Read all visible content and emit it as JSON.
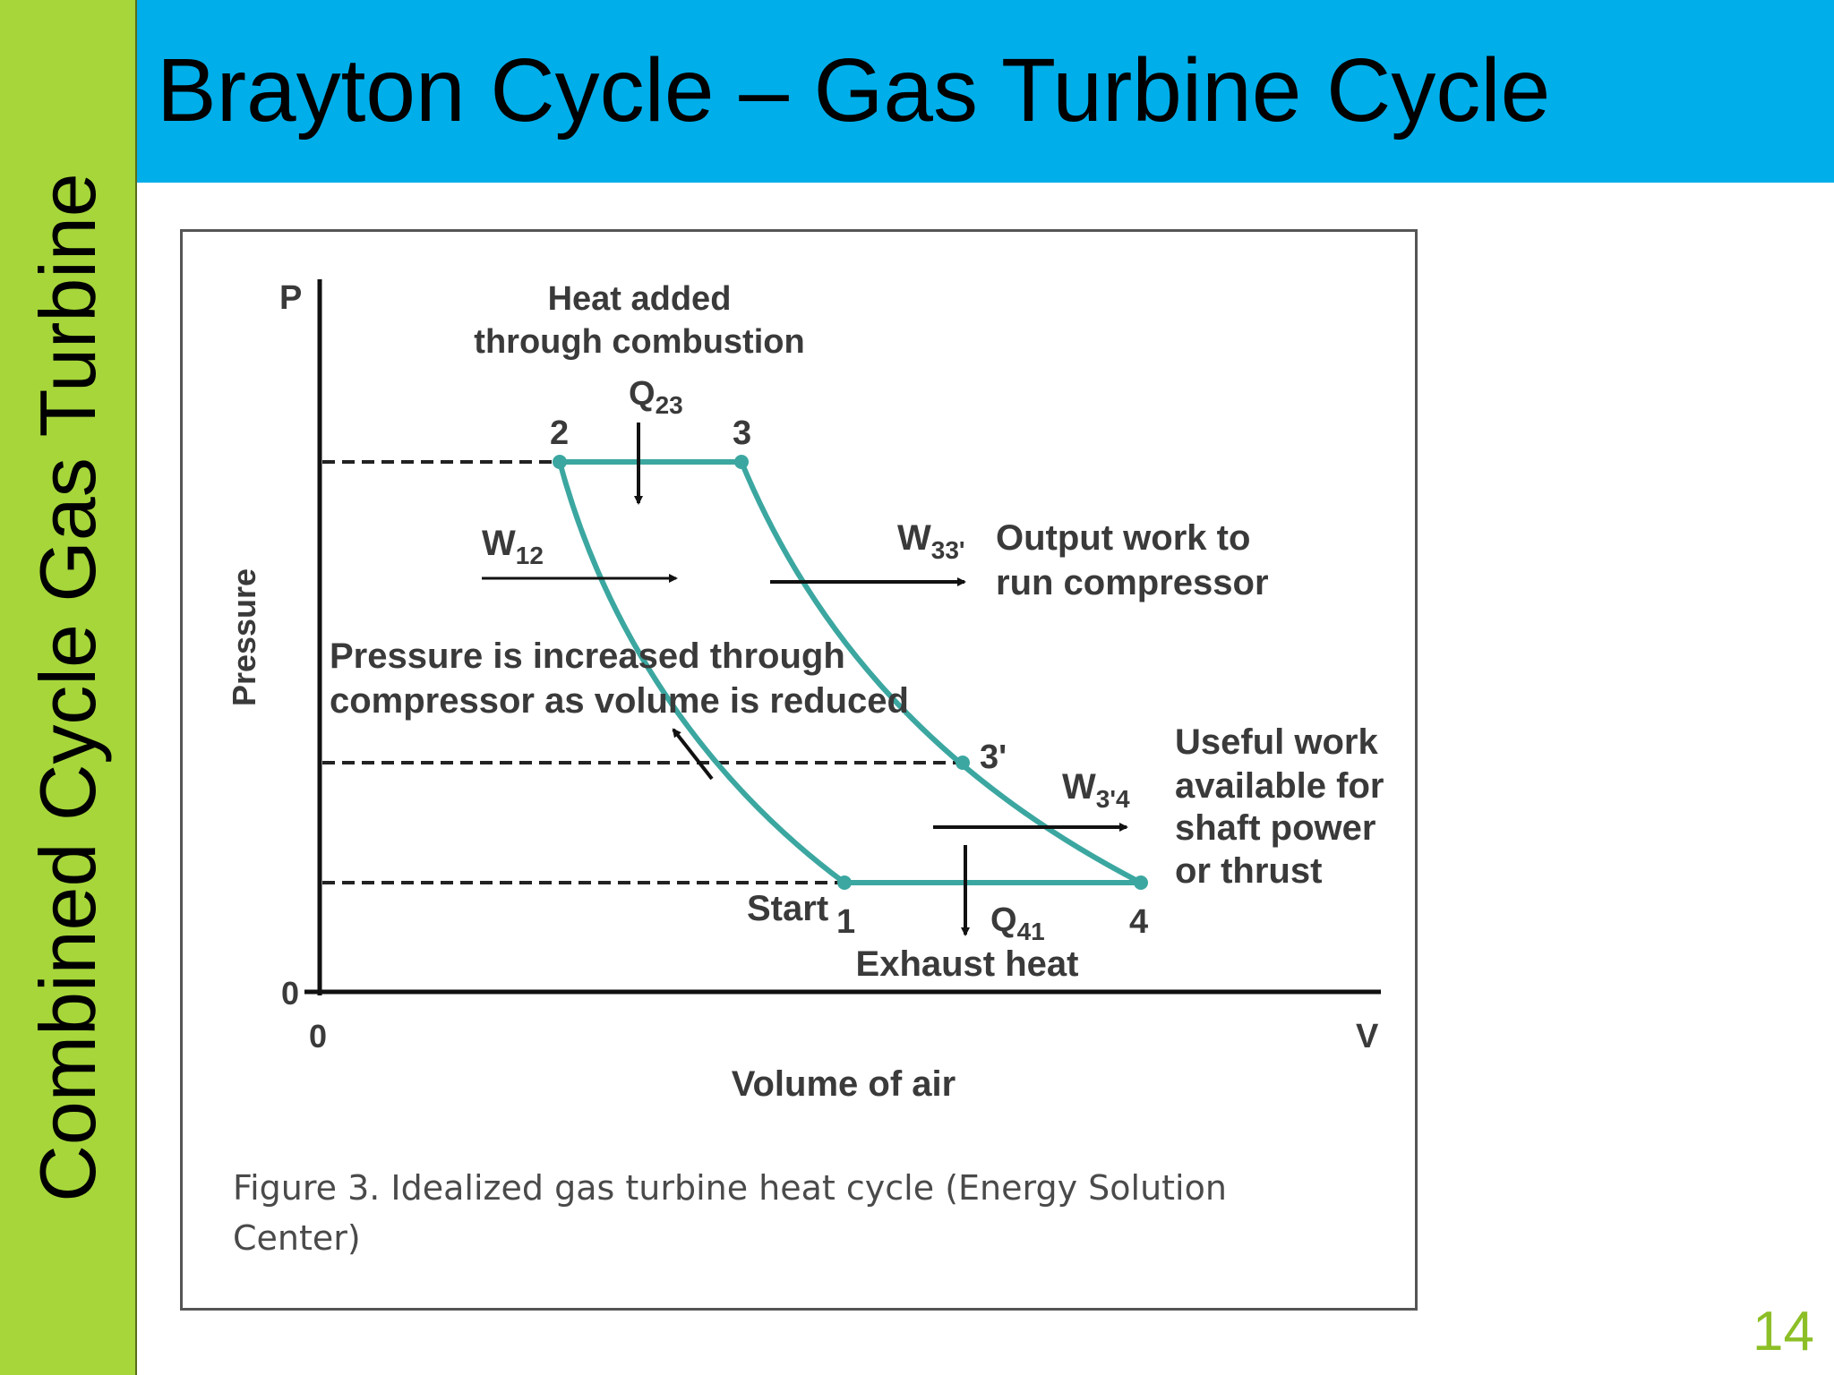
{
  "side_title": "Combined Cycle Gas Turbine",
  "slide_title": "Brayton Cycle – Gas Turbine Cycle",
  "page_number": "14",
  "colors": {
    "side_bar": "#a6d63a",
    "title_bar": "#00aeea",
    "cycle_line": "#3ba7a0",
    "page_number": "#8cbf26"
  },
  "figure": {
    "axis_y_letter": "P",
    "axis_x_letter": "V",
    "axis_y_label": "Pressure",
    "axis_x_label": "Volume of air",
    "origin_y": "0",
    "origin_x": "0",
    "heat_added": [
      "Heat added",
      "through combustion"
    ],
    "q23": {
      "main": "Q",
      "sub": "23"
    },
    "q41": {
      "main": "Q",
      "sub": "41"
    },
    "w12": {
      "main": "W",
      "sub": "12"
    },
    "w33": {
      "main": "W",
      "sub": "33'"
    },
    "w34": {
      "main": "W",
      "sub": "3'4"
    },
    "output_work": [
      "Output work to",
      "run compressor"
    ],
    "compressor_note": [
      "Pressure is increased through",
      "compressor as volume is reduced"
    ],
    "useful_work": [
      "Useful work",
      "available for",
      "shaft power",
      "or thrust"
    ],
    "start_label": "Start",
    "exhaust_heat": "Exhaust heat",
    "points": {
      "p1": "1",
      "p2": "2",
      "p3": "3",
      "p3prime": "3'",
      "p4": "4"
    },
    "caption": [
      "Figure 3. Idealized gas turbine heat cycle (Energy Solution",
      "Center)"
    ]
  }
}
